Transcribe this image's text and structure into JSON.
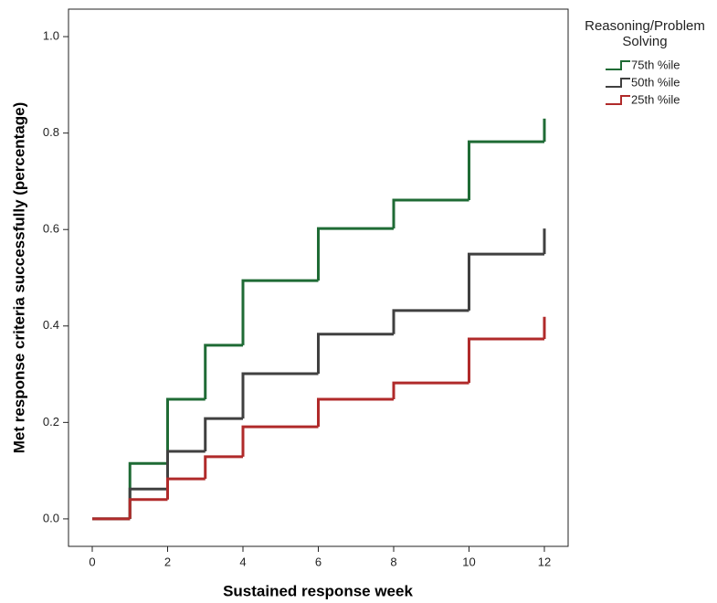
{
  "chart_data": {
    "type": "step",
    "x_label": "Sustained response week",
    "y_label": "Met response criteria successfully (percentage)",
    "legend_title": "Reasoning/Problem Solving",
    "x": [
      0,
      1,
      2,
      3,
      4,
      6,
      8,
      10,
      12
    ],
    "series": [
      {
        "name": "75th %ile",
        "color": "#1f6b35",
        "values": [
          0,
          0.115,
          0.248,
          0.36,
          0.494,
          0.602,
          0.661,
          0.782,
          0.83
        ]
      },
      {
        "name": "50th %ile",
        "color": "#404040",
        "values": [
          0,
          0.062,
          0.14,
          0.208,
          0.301,
          0.383,
          0.432,
          0.549,
          0.602
        ]
      },
      {
        "name": "25th %ile",
        "color": "#b02a2a",
        "values": [
          0,
          0.04,
          0.083,
          0.129,
          0.191,
          0.248,
          0.282,
          0.373,
          0.419
        ]
      }
    ],
    "xlim": [
      -0.63,
      12.63
    ],
    "ylim": [
      -0.057,
      1.057
    ],
    "xticks": [
      0,
      2,
      4,
      6,
      8,
      10,
      12
    ],
    "yticks": [
      {
        "value": 0,
        "label": "0.0"
      },
      {
        "value": 0.2,
        "label": "0.2"
      },
      {
        "value": 0.4,
        "label": "0.4"
      },
      {
        "value": 0.6,
        "label": "0.6"
      },
      {
        "value": 0.8,
        "label": "0.8"
      },
      {
        "value": 1,
        "label": "1.0"
      }
    ]
  }
}
